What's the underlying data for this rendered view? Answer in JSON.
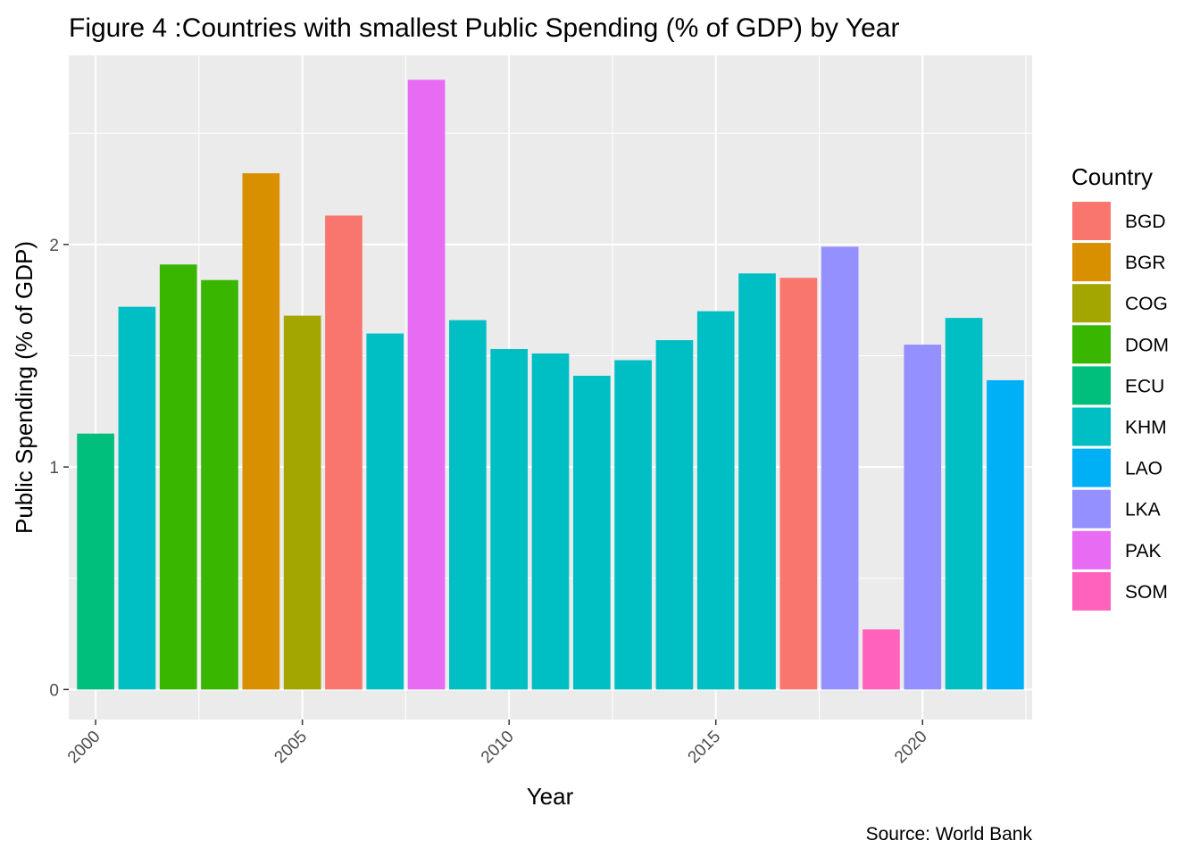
{
  "chart_data": {
    "type": "bar",
    "title": "Figure 4 :Countries with smallest Public Spending (% of GDP) by Year",
    "xlabel": "Year",
    "ylabel": "Public Spending (% of GDP)",
    "caption": "Source: World Bank",
    "legend_title": "Country",
    "legend_position": "right",
    "grid": true,
    "xlim": [
      1999.35,
      2022.65
    ],
    "ylim": [
      -0.135,
      2.85
    ],
    "x_ticks": [
      2000,
      2005,
      2010,
      2015,
      2020
    ],
    "x_minor_ticks": [
      2002.5,
      2007.5,
      2012.5,
      2017.5,
      2022.5
    ],
    "y_ticks": [
      0,
      1,
      2
    ],
    "y_minor_ticks": [
      0.5,
      1.5,
      2.5
    ],
    "series": [
      {
        "name": "BGD",
        "color": "#F8766D"
      },
      {
        "name": "BGR",
        "color": "#D89000"
      },
      {
        "name": "COG",
        "color": "#A3A500"
      },
      {
        "name": "DOM",
        "color": "#39B600"
      },
      {
        "name": "ECU",
        "color": "#00BF7D"
      },
      {
        "name": "KHM",
        "color": "#00BFC4"
      },
      {
        "name": "LAO",
        "color": "#00B0F6"
      },
      {
        "name": "LKA",
        "color": "#9590FF"
      },
      {
        "name": "PAK",
        "color": "#E76BF3"
      },
      {
        "name": "SOM",
        "color": "#FF62BC"
      }
    ],
    "bars": [
      {
        "year": 2000,
        "country": "ECU",
        "value": 1.15
      },
      {
        "year": 2001,
        "country": "KHM",
        "value": 1.72
      },
      {
        "year": 2002,
        "country": "DOM",
        "value": 1.91
      },
      {
        "year": 2003,
        "country": "DOM",
        "value": 1.84
      },
      {
        "year": 2004,
        "country": "BGR",
        "value": 2.32
      },
      {
        "year": 2005,
        "country": "COG",
        "value": 1.68
      },
      {
        "year": 2006,
        "country": "BGD",
        "value": 2.13
      },
      {
        "year": 2007,
        "country": "KHM",
        "value": 1.6
      },
      {
        "year": 2008,
        "country": "PAK",
        "value": 2.74
      },
      {
        "year": 2009,
        "country": "KHM",
        "value": 1.66
      },
      {
        "year": 2010,
        "country": "KHM",
        "value": 1.53
      },
      {
        "year": 2011,
        "country": "KHM",
        "value": 1.51
      },
      {
        "year": 2012,
        "country": "KHM",
        "value": 1.41
      },
      {
        "year": 2013,
        "country": "KHM",
        "value": 1.48
      },
      {
        "year": 2014,
        "country": "KHM",
        "value": 1.57
      },
      {
        "year": 2015,
        "country": "KHM",
        "value": 1.7
      },
      {
        "year": 2016,
        "country": "KHM",
        "value": 1.87
      },
      {
        "year": 2017,
        "country": "BGD",
        "value": 1.85
      },
      {
        "year": 2018,
        "country": "LKA",
        "value": 1.99
      },
      {
        "year": 2019,
        "country": "SOM",
        "value": 0.27
      },
      {
        "year": 2020,
        "country": "LKA",
        "value": 1.55
      },
      {
        "year": 2021,
        "country": "KHM",
        "value": 1.67
      },
      {
        "year": 2022,
        "country": "LAO",
        "value": 1.39
      }
    ]
  }
}
